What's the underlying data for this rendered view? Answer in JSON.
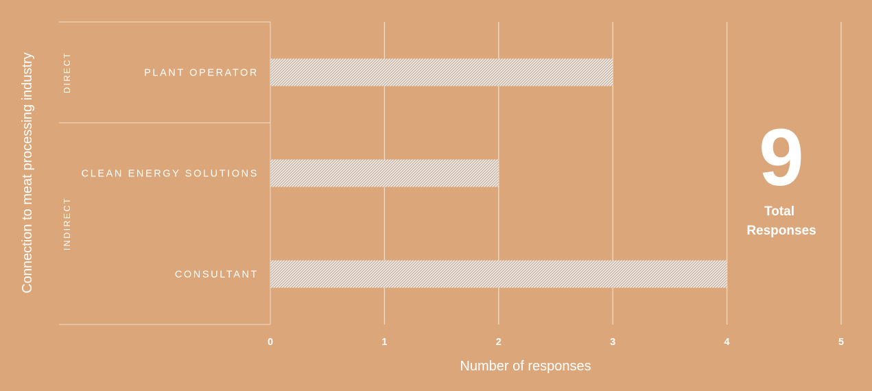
{
  "chart_data": {
    "type": "bar",
    "orientation": "horizontal",
    "groups": [
      {
        "name": "DIRECT",
        "categories": [
          "PLANT OPERATOR"
        ]
      },
      {
        "name": "INDIRECT",
        "categories": [
          "CLEAN ENERGY SOLUTIONS",
          "CONSULTANT"
        ]
      }
    ],
    "categories": [
      "PLANT OPERATOR",
      "CLEAN ENERGY SOLUTIONS",
      "CONSULTANT"
    ],
    "values": [
      3,
      2,
      4
    ],
    "xlabel": "Number of responses",
    "ylabel": "Connection to meat processing industry",
    "xlim": [
      0,
      5
    ],
    "xticks": [
      "0",
      "1",
      "2",
      "3",
      "4",
      "5"
    ],
    "grid": true,
    "bar_pattern": "hatched",
    "colors": {
      "background": "#dba77a",
      "text": "#ffffff",
      "bar": "#ffffff"
    }
  },
  "summary": {
    "number": "9",
    "label_line1": "Total",
    "label_line2": "Responses"
  }
}
